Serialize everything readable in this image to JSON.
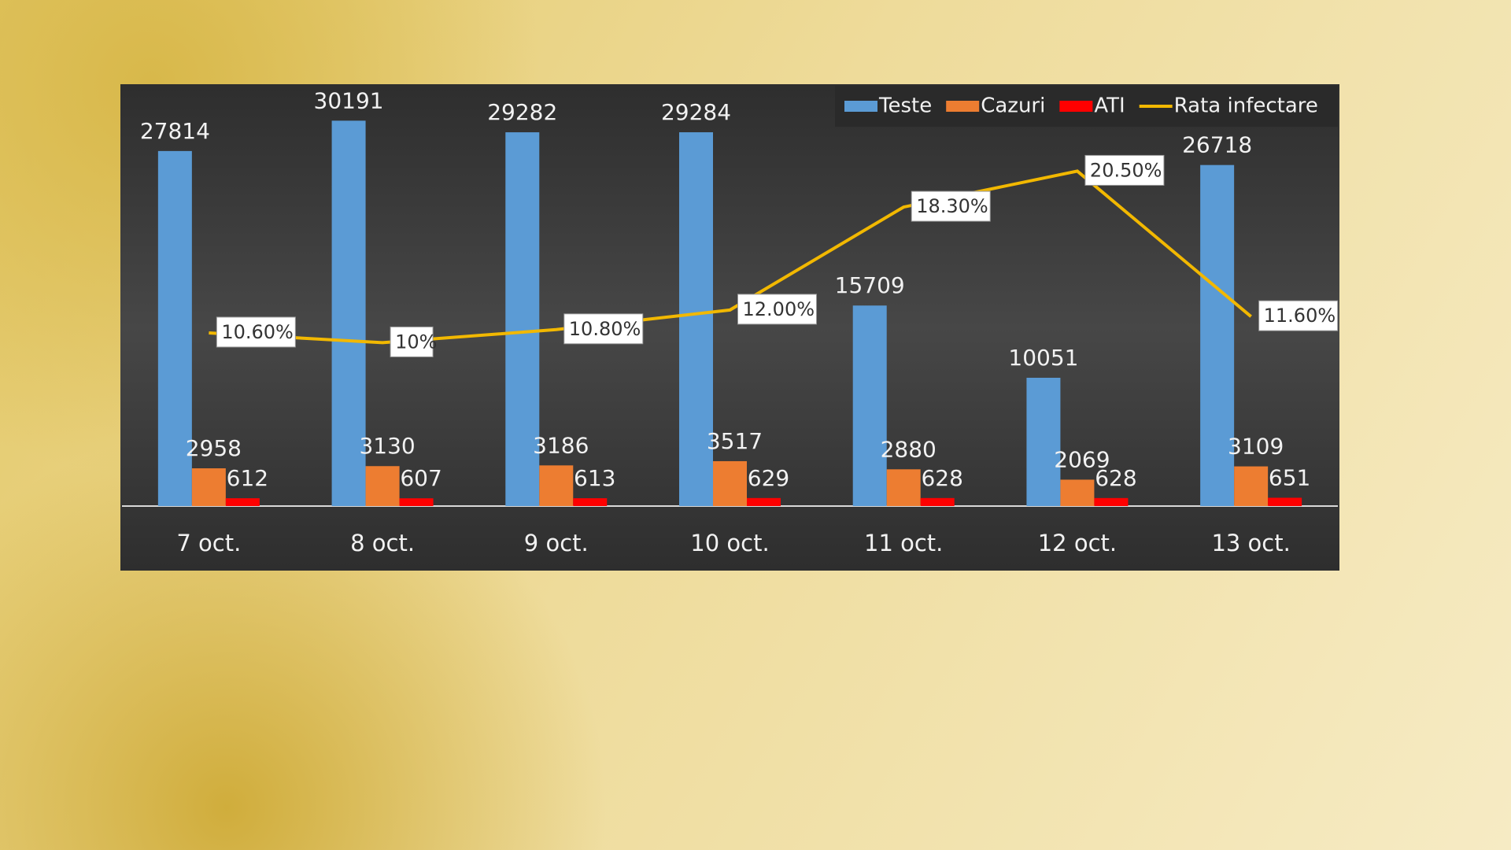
{
  "chart_data": {
    "type": "bar",
    "categories": [
      "7 oct.",
      "8 oct.",
      "9 oct.",
      "10 oct.",
      "11 oct.",
      "12 oct.",
      "13 oct."
    ],
    "series": [
      {
        "name": "Teste",
        "color": "#5b9bd5",
        "values": [
          27814,
          30191,
          29282,
          29284,
          15709,
          10051,
          26718
        ]
      },
      {
        "name": "Cazuri",
        "color": "#ed7d31",
        "values": [
          2958,
          3130,
          3186,
          3517,
          2880,
          2069,
          3109
        ]
      },
      {
        "name": "ATI",
        "color": "#ff0000",
        "values": [
          612,
          607,
          613,
          629,
          628,
          628,
          651
        ]
      },
      {
        "name": "Rata infectare",
        "color": "#f2b800",
        "type": "line",
        "axis": "y2",
        "values": [
          10.6,
          10,
          10.8,
          12,
          18.3,
          20.5,
          11.6
        ],
        "value_labels": [
          "10.60%",
          "10%",
          "10.80%",
          "12.00%",
          "18.30%",
          "20.50%",
          "11.60%"
        ]
      }
    ],
    "ylim": [
      0,
      32000
    ],
    "y2lim": [
      0,
      25
    ],
    "legend": "top-right"
  }
}
